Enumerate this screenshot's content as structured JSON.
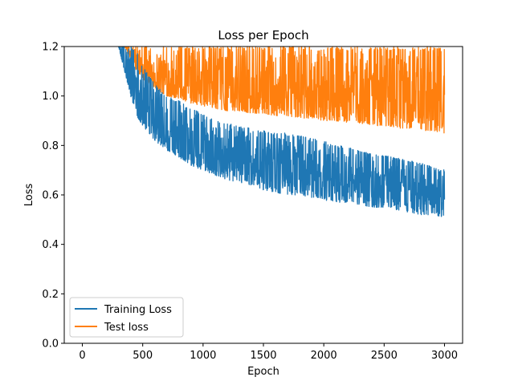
{
  "chart_data": {
    "type": "line",
    "title": "Loss per Epoch",
    "xlabel": "Epoch",
    "ylabel": "Loss",
    "xlim": [
      -150,
      3150
    ],
    "ylim": [
      0.0,
      1.2
    ],
    "xticks": [
      0,
      500,
      1000,
      1500,
      2000,
      2500,
      3000
    ],
    "yticks": [
      0.0,
      0.2,
      0.4,
      0.6,
      0.8,
      1.0,
      1.2
    ],
    "xtick_labels": [
      "0",
      "500",
      "1000",
      "1500",
      "2000",
      "2500",
      "3000"
    ],
    "ytick_labels": [
      "0.0",
      "0.2",
      "0.4",
      "0.6",
      "0.8",
      "1.0",
      "1.2"
    ],
    "grid": false,
    "legend": {
      "placement": "lower-left"
    },
    "series": [
      {
        "name": "Training Loss",
        "color": "#1f77b4",
        "x": [
          300,
          350,
          400,
          450,
          500,
          600,
          700,
          800,
          900,
          1000,
          1100,
          1200,
          1300,
          1400,
          1500,
          1600,
          1700,
          1800,
          1900,
          2000,
          2100,
          2200,
          2300,
          2400,
          2500,
          2600,
          2700,
          2800,
          2900,
          3000
        ],
        "y_low": [
          1.2,
          1.1,
          1.0,
          0.92,
          0.88,
          0.82,
          0.78,
          0.75,
          0.72,
          0.7,
          0.68,
          0.66,
          0.65,
          0.64,
          0.62,
          0.61,
          0.6,
          0.6,
          0.59,
          0.58,
          0.57,
          0.57,
          0.56,
          0.55,
          0.55,
          0.54,
          0.53,
          0.52,
          0.52,
          0.51
        ],
        "y_high": [
          1.2,
          1.2,
          1.2,
          1.18,
          1.12,
          1.05,
          1.0,
          0.98,
          0.95,
          0.93,
          0.9,
          0.89,
          0.88,
          0.87,
          0.86,
          0.85,
          0.85,
          0.84,
          0.83,
          0.82,
          0.8,
          0.8,
          0.78,
          0.77,
          0.76,
          0.75,
          0.74,
          0.73,
          0.72,
          0.7
        ]
      },
      {
        "name": "Test loss",
        "color": "#ff7f0e",
        "x": [
          350,
          400,
          450,
          500,
          600,
          700,
          800,
          900,
          1000,
          1100,
          1200,
          1300,
          1400,
          1500,
          1600,
          1700,
          1800,
          1900,
          2000,
          2100,
          2200,
          2300,
          2400,
          2500,
          2600,
          2700,
          2800,
          2900,
          3000
        ],
        "y_low": [
          1.2,
          1.15,
          1.1,
          1.07,
          1.03,
          1.0,
          0.99,
          0.97,
          0.96,
          0.95,
          0.94,
          0.94,
          0.93,
          0.93,
          0.92,
          0.92,
          0.91,
          0.91,
          0.9,
          0.9,
          0.89,
          0.89,
          0.88,
          0.88,
          0.87,
          0.87,
          0.86,
          0.86,
          0.85
        ],
        "y_high": [
          1.2,
          1.2,
          1.2,
          1.2,
          1.2,
          1.2,
          1.2,
          1.2,
          1.2,
          1.2,
          1.2,
          1.2,
          1.2,
          1.2,
          1.2,
          1.2,
          1.2,
          1.2,
          1.2,
          1.2,
          1.2,
          1.2,
          1.2,
          1.2,
          1.2,
          1.2,
          1.2,
          1.2,
          1.2
        ]
      }
    ]
  }
}
